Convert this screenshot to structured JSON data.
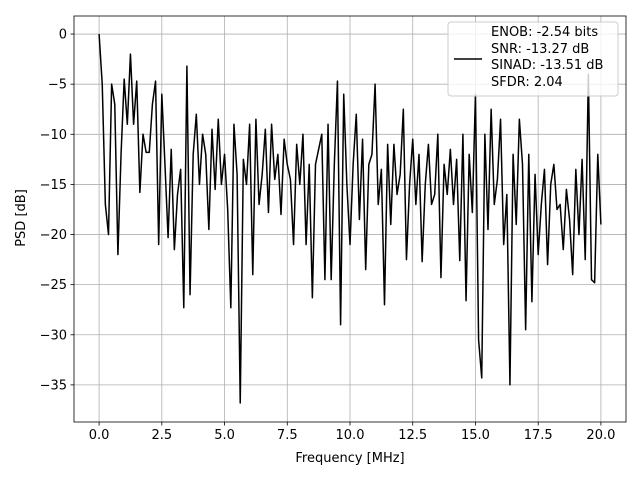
{
  "chart_data": {
    "type": "line",
    "x_label": "Frequency [MHz]",
    "y_label": "PSD [dB]",
    "xlim": [
      -1.0,
      21.0
    ],
    "ylim": [
      -38.7,
      1.8
    ],
    "xticks": [
      {
        "value": 0,
        "label": "0.0"
      },
      {
        "value": 2.5,
        "label": "2.5"
      },
      {
        "value": 5,
        "label": "5.0"
      },
      {
        "value": 7.5,
        "label": "7.5"
      },
      {
        "value": 10,
        "label": "10.0"
      },
      {
        "value": 12.5,
        "label": "12.5"
      },
      {
        "value": 15,
        "label": "15.0"
      },
      {
        "value": 17.5,
        "label": "17.5"
      },
      {
        "value": 20,
        "label": "20.0"
      }
    ],
    "yticks": [
      0,
      {
        "value": -5,
        "label": "−5"
      },
      {
        "value": -10,
        "label": "−10"
      },
      {
        "value": -15,
        "label": "−15"
      },
      {
        "value": -20,
        "label": "−20"
      },
      {
        "value": -25,
        "label": "−25"
      },
      {
        "value": -30,
        "label": "−30"
      },
      {
        "value": -35,
        "label": "−35"
      }
    ],
    "grid": true,
    "legend": "upper right",
    "x": [
      0,
      0.125,
      0.25,
      0.375,
      0.5,
      0.625,
      0.75,
      0.875,
      1.0,
      1.125,
      1.25,
      1.375,
      1.5,
      1.625,
      1.75,
      1.875,
      2.0,
      2.125,
      2.25,
      2.375,
      2.5,
      2.625,
      2.75,
      2.875,
      3.0,
      3.125,
      3.25,
      3.375,
      3.5,
      3.625,
      3.75,
      3.875,
      4.0,
      4.125,
      4.25,
      4.375,
      4.5,
      4.625,
      4.75,
      4.875,
      5.0,
      5.125,
      5.25,
      5.375,
      5.5,
      5.625,
      5.75,
      5.875,
      6.0,
      6.125,
      6.25,
      6.375,
      6.5,
      6.625,
      6.75,
      6.875,
      7.0,
      7.125,
      7.25,
      7.375,
      7.5,
      7.625,
      7.75,
      7.875,
      8.0,
      8.125,
      8.25,
      8.375,
      8.5,
      8.625,
      8.75,
      8.875,
      9.0,
      9.125,
      9.25,
      9.375,
      9.5,
      9.625,
      9.75,
      9.875,
      10.0,
      10.125,
      10.25,
      10.375,
      10.5,
      10.625,
      10.75,
      10.875,
      11.0,
      11.125,
      11.25,
      11.375,
      11.5,
      11.625,
      11.75,
      11.875,
      12.0,
      12.125,
      12.25,
      12.375,
      12.5,
      12.625,
      12.75,
      12.875,
      13.0,
      13.125,
      13.25,
      13.375,
      13.5,
      13.625,
      13.75,
      13.875,
      14.0,
      14.125,
      14.25,
      14.375,
      14.5,
      14.625,
      14.75,
      14.875,
      15.0,
      15.125,
      15.25,
      15.375,
      15.5,
      15.625,
      15.75,
      15.875,
      16.0,
      16.125,
      16.25,
      16.375,
      16.5,
      16.625,
      16.75,
      16.875,
      17.0,
      17.125,
      17.25,
      17.375,
      17.5,
      17.625,
      17.75,
      17.875,
      18.0,
      18.125,
      18.25,
      18.375,
      18.5,
      18.625,
      18.75,
      18.875,
      19.0,
      19.125,
      19.25,
      19.375,
      19.5,
      19.625,
      19.75,
      19.875,
      20.0
    ],
    "series": [
      {
        "name": "ENOB: -2.54 bits\nSNR: -13.27 dB\nSINAD: -13.51 dB\nSFDR: 2.04",
        "color": "#000000",
        "values": [
          0,
          -5,
          -17,
          -20,
          -5,
          -7,
          -22,
          -12,
          -4.5,
          -9,
          -2,
          -9,
          -4.7,
          -15.8,
          -10,
          -11.8,
          -11.8,
          -7,
          -4.7,
          -21,
          -6,
          -13,
          -20.3,
          -11.5,
          -21.5,
          -16,
          -13.5,
          -27.3,
          -3.2,
          -26,
          -12,
          -8,
          -15,
          -10,
          -12,
          -19.5,
          -9.5,
          -15.5,
          -8.5,
          -15,
          -12,
          -17.5,
          -27.3,
          -9,
          -14,
          -36.8,
          -12.5,
          -15,
          -9,
          -24,
          -8.5,
          -17,
          -14,
          -9.5,
          -17.8,
          -9,
          -14.5,
          -12,
          -18,
          -10.5,
          -13,
          -14.5,
          -21,
          -11,
          -15,
          -10,
          -21,
          -13,
          -26.3,
          -13,
          -11.5,
          -10,
          -24.5,
          -9,
          -24.5,
          -13,
          -4.7,
          -29,
          -6,
          -15,
          -21,
          -13,
          -8,
          -18.5,
          -10.5,
          -23.5,
          -13,
          -12,
          -5,
          -17,
          -13.5,
          -27,
          -11,
          -19,
          -11,
          -16,
          -14,
          -7.5,
          -22.5,
          -15,
          -10.5,
          -17,
          -12,
          -22.7,
          -15,
          -11,
          -17,
          -16,
          -10,
          -24.3,
          -13,
          -16,
          -11.5,
          -17,
          -12.5,
          -22.6,
          -10,
          -26.6,
          -12,
          -17.8,
          -6,
          -30.5,
          -34.3,
          -10,
          -19.5,
          -7.5,
          -17,
          -14.5,
          -8.5,
          -21,
          -16,
          -35,
          -12,
          -19,
          -8.5,
          -13,
          -29.5,
          -12,
          -26.7,
          -14,
          -22,
          -17,
          -13.5,
          -23,
          -15,
          -13,
          -17.5,
          -17,
          -21.5,
          -15.5,
          -18.5,
          -24,
          -13.5,
          -20,
          -12.5,
          -22.5,
          -4,
          -24.5,
          -24.8,
          -12,
          -19
        ]
      }
    ]
  }
}
